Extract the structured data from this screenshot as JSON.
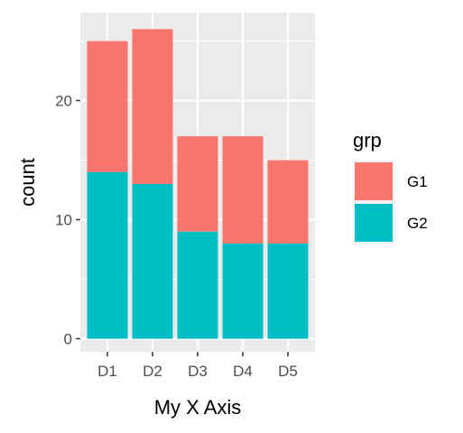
{
  "chart_data": {
    "type": "bar",
    "stacked": true,
    "categories": [
      "D1",
      "D2",
      "D3",
      "D4",
      "D5"
    ],
    "series": [
      {
        "name": "G2",
        "values": [
          14,
          13,
          9,
          8,
          8
        ],
        "color": "#00BFC4"
      },
      {
        "name": "G1",
        "values": [
          11,
          13,
          8,
          9,
          7
        ],
        "color": "#F8766D"
      }
    ],
    "xlabel": "My X Axis",
    "ylabel": "count",
    "ylim": [
      0,
      27.3
    ],
    "yticks": [
      0,
      10,
      20
    ],
    "ytick_labels": [
      "0",
      "10",
      "20"
    ],
    "grid": true,
    "panel_background": "#EBEBEB",
    "legend": {
      "title": "grp",
      "position": "right",
      "items": [
        {
          "label": "G1",
          "color": "#F8766D"
        },
        {
          "label": "G2",
          "color": "#00BFC4"
        }
      ]
    }
  }
}
